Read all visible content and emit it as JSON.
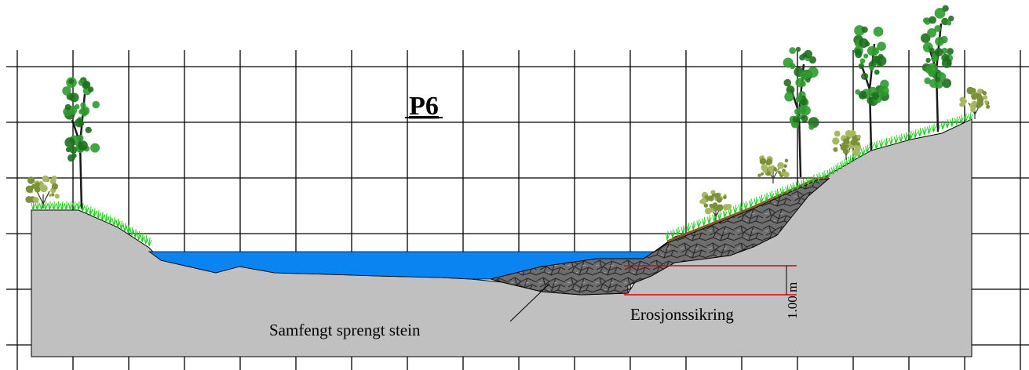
{
  "title": "P6",
  "labels": {
    "fill_material": "Samfengt sprengt stein",
    "erosion_protection": "Erosjonssikring",
    "dimension": "1.00 m"
  },
  "colors": {
    "background": "#ffffff",
    "grid": "#000000",
    "ground": "#c0c0c0",
    "ground_outline": "#000000",
    "water": "#0a84f0",
    "riprap": "#6e6e6e",
    "riprap_lines": "#2a2a2a",
    "dimension_lines": "#e00000",
    "grass": "#22cc22",
    "tree_foliage": "#2e9a2e",
    "tree_foliage_dark": "#1f6e1f",
    "tree_trunk": "#1a1a1a",
    "shrub": "#7c8f3a",
    "topsoil": "#8b5a2b"
  },
  "icons": [
    "tree-icon",
    "shrub-icon",
    "grass-icon"
  ]
}
